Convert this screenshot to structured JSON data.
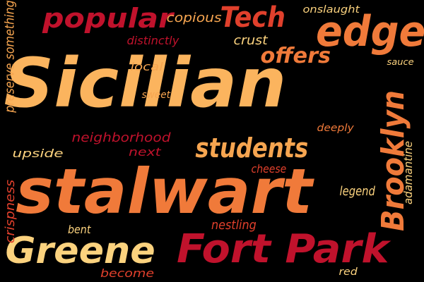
{
  "background": "#000000",
  "palette": {
    "crimson": "#c0122c",
    "red": "#e0402c",
    "orange": "#f07a3a",
    "amber": "#f6a550",
    "sand": "#fbd27e"
  },
  "words": [
    {
      "text": "Sicilian",
      "color": "#fbb45e"
    },
    {
      "text": "stalwart",
      "color": "#f07a3a"
    },
    {
      "text": "Fort Park",
      "color": "#c0122c"
    },
    {
      "text": "Greene",
      "color": "#fbd27e"
    },
    {
      "text": "edge",
      "color": "#f07a3a"
    },
    {
      "text": "popular",
      "color": "#c0122c"
    },
    {
      "text": "Tech",
      "color": "#e0402c"
    },
    {
      "text": "students",
      "color": "#f6a550"
    },
    {
      "text": "offers",
      "color": "#f07a3a"
    },
    {
      "text": "Brooklyn",
      "color": "#f07a3a"
    },
    {
      "text": "copious",
      "color": "#f6a550"
    },
    {
      "text": "onslaught",
      "color": "#fbd27e"
    },
    {
      "text": "crust",
      "color": "#fbd27e"
    },
    {
      "text": "distinctly",
      "color": "#c0122c"
    },
    {
      "text": "local",
      "color": "#f6a550"
    },
    {
      "text": "sweet",
      "color": "#f6a550"
    },
    {
      "text": "sauce",
      "color": "#fbd27e"
    },
    {
      "text": "neighborhood",
      "color": "#c0122c"
    },
    {
      "text": "next",
      "color": "#c0122c"
    },
    {
      "text": "deeply",
      "color": "#f07a3a"
    },
    {
      "text": "upside",
      "color": "#fbd27e"
    },
    {
      "text": "cheese",
      "color": "#e0402c"
    },
    {
      "text": "legend",
      "color": "#fbd27e"
    },
    {
      "text": "adamantine",
      "color": "#fbd27e"
    },
    {
      "text": "nestling",
      "color": "#e0402c"
    },
    {
      "text": "bent",
      "color": "#fbd27e"
    },
    {
      "text": "become",
      "color": "#e0402c"
    },
    {
      "text": "red",
      "color": "#fbd27e"
    },
    {
      "text": "crispness",
      "color": "#e0402c"
    },
    {
      "text": "preserve something",
      "color": "#f6a550"
    }
  ]
}
